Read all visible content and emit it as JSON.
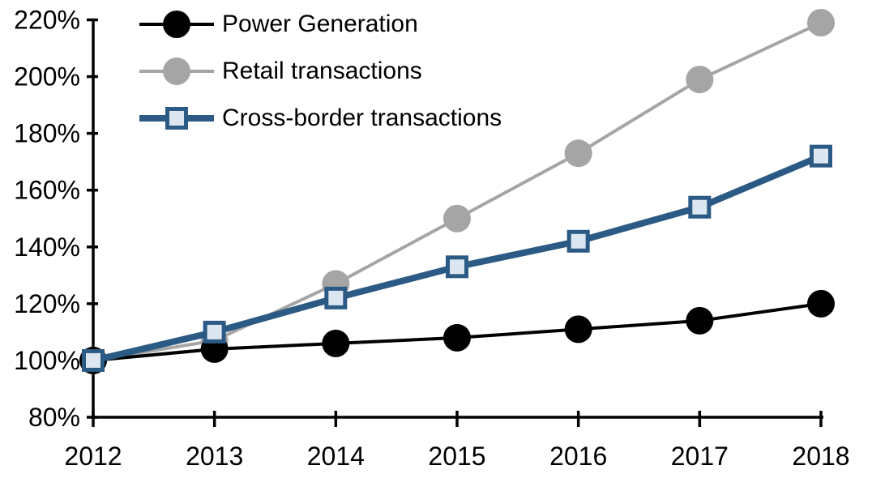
{
  "chart_data": {
    "type": "line",
    "title": "",
    "x_categories": [
      "2012",
      "2013",
      "2014",
      "2015",
      "2016",
      "2017",
      "2018"
    ],
    "y_tick_labels": [
      "80%",
      "100%",
      "120%",
      "140%",
      "160%",
      "180%",
      "200%",
      "220%"
    ],
    "y_axis": {
      "min": 80,
      "max": 220,
      "step": 20,
      "tick_suffix": "%"
    },
    "grid": false,
    "legend_position": "top-left-inside",
    "background_color": "#FFFFFF",
    "axis_color": "#000000",
    "series": [
      {
        "name": "Power Generation",
        "marker": "circle",
        "line_color": "#000000",
        "marker_fill": "#000000",
        "marker_border": "#000000",
        "line_width": 4,
        "z_index": 1,
        "values": [
          100,
          104,
          106,
          108,
          111,
          114,
          120
        ]
      },
      {
        "name": "Retail transactions",
        "marker": "circle",
        "line_color": "#A5A5A5",
        "marker_fill": "#A5A5A5",
        "marker_border": "#A5A5A5",
        "line_width": 4,
        "z_index": 0,
        "values": [
          100,
          107,
          127,
          150,
          173,
          199,
          219
        ]
      },
      {
        "name": "Cross-border transactions",
        "marker": "square",
        "line_color": "#2B5A84",
        "marker_fill": "#DCE6F1",
        "marker_border": "#2B5A84",
        "line_width": 8,
        "z_index": 2,
        "values": [
          100,
          110,
          122,
          133,
          142,
          154,
          172
        ]
      }
    ]
  }
}
